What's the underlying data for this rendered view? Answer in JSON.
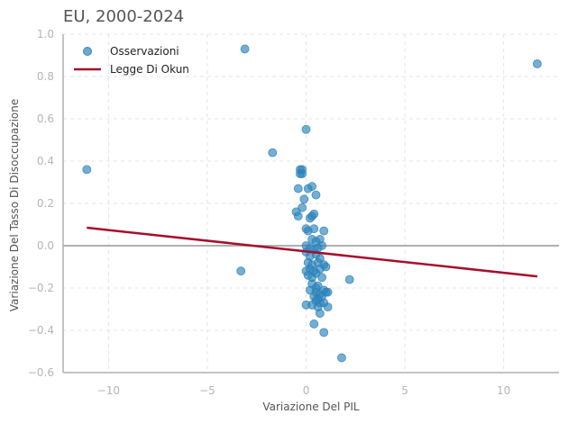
{
  "chart_data": {
    "type": "scatter",
    "title": "EU, 2000-2024",
    "xlabel": "Variazione Del PIL",
    "ylabel": "Variazione Del Tasso Di Disoccupazione",
    "xlim": [
      -12.3,
      12.8
    ],
    "ylim": [
      -0.6,
      1.0
    ],
    "xticks": [
      -10,
      -5,
      0,
      5,
      10
    ],
    "xtick_labels": [
      "−10",
      "−5",
      "0",
      "5",
      "10"
    ],
    "yticks": [
      -0.6,
      -0.4,
      -0.2,
      0.0,
      0.2,
      0.4,
      0.6,
      0.8,
      1.0
    ],
    "ytick_labels": [
      "−0.6",
      "−0.4",
      "−0.2",
      "0.0",
      "0.2",
      "0.4",
      "0.6",
      "0.8",
      "1.0"
    ],
    "grid": true,
    "legend_position": "top-left",
    "colors": {
      "points": "#2b83ba",
      "line": "#a50f2c",
      "zero_line": "#b0b0b0",
      "grid": "#e4e4e4",
      "axis": "#b0b0b0"
    },
    "series": [
      {
        "name": "Osservazioni",
        "kind": "scatter",
        "points": [
          [
            -3.1,
            0.93
          ],
          [
            11.7,
            0.86
          ],
          [
            -11.1,
            0.36
          ],
          [
            -1.7,
            0.44
          ],
          [
            0.0,
            0.55
          ],
          [
            -3.3,
            -0.12
          ],
          [
            2.2,
            -0.16
          ],
          [
            1.8,
            -0.53
          ],
          [
            0.9,
            -0.41
          ],
          [
            0.4,
            -0.37
          ],
          [
            -0.3,
            0.36
          ],
          [
            -0.2,
            0.36
          ],
          [
            -0.3,
            0.34
          ],
          [
            -0.2,
            0.34
          ],
          [
            -0.4,
            0.27
          ],
          [
            0.3,
            0.28
          ],
          [
            0.1,
            0.27
          ],
          [
            0.5,
            0.24
          ],
          [
            -0.1,
            0.22
          ],
          [
            -0.5,
            0.16
          ],
          [
            -0.4,
            0.14
          ],
          [
            -0.2,
            0.18
          ],
          [
            0.3,
            0.14
          ],
          [
            0.4,
            0.15
          ],
          [
            0.2,
            0.13
          ],
          [
            0.0,
            0.08
          ],
          [
            0.1,
            0.07
          ],
          [
            0.4,
            0.08
          ],
          [
            0.9,
            0.07
          ],
          [
            0.3,
            0.03
          ],
          [
            0.5,
            0.02
          ],
          [
            0.7,
            0.03
          ],
          [
            0.0,
            0.0
          ],
          [
            0.2,
            -0.01
          ],
          [
            0.4,
            -0.02
          ],
          [
            0.6,
            -0.01
          ],
          [
            0.8,
            0.0
          ],
          [
            0.0,
            -0.03
          ],
          [
            0.2,
            -0.05
          ],
          [
            0.5,
            -0.04
          ],
          [
            0.7,
            -0.06
          ],
          [
            0.1,
            -0.08
          ],
          [
            0.3,
            -0.09
          ],
          [
            0.6,
            -0.08
          ],
          [
            0.9,
            -0.09
          ],
          [
            0.0,
            -0.12
          ],
          [
            0.2,
            -0.11
          ],
          [
            0.4,
            -0.12
          ],
          [
            0.7,
            -0.11
          ],
          [
            1.0,
            -0.1
          ],
          [
            0.1,
            -0.14
          ],
          [
            0.3,
            -0.15
          ],
          [
            0.5,
            -0.13
          ],
          [
            0.8,
            -0.15
          ],
          [
            0.3,
            -0.18
          ],
          [
            0.5,
            -0.2
          ],
          [
            0.9,
            -0.21
          ],
          [
            1.1,
            -0.22
          ],
          [
            0.5,
            -0.22
          ],
          [
            0.7,
            -0.23
          ],
          [
            0.4,
            -0.24
          ],
          [
            0.6,
            -0.25
          ],
          [
            0.8,
            -0.24
          ],
          [
            0.5,
            -0.26
          ],
          [
            0.7,
            -0.27
          ],
          [
            0.3,
            -0.28
          ],
          [
            0.9,
            -0.27
          ],
          [
            0.0,
            -0.28
          ],
          [
            0.6,
            -0.29
          ],
          [
            1.1,
            -0.29
          ],
          [
            0.7,
            -0.32
          ],
          [
            0.2,
            -0.21
          ],
          [
            1.0,
            -0.22
          ],
          [
            0.6,
            -0.19
          ]
        ]
      },
      {
        "name": "Legge Di Okun",
        "kind": "line",
        "points": [
          [
            -11.1,
            0.085
          ],
          [
            11.7,
            -0.145
          ]
        ]
      }
    ],
    "reference_lines": {
      "y": 0.0
    }
  }
}
